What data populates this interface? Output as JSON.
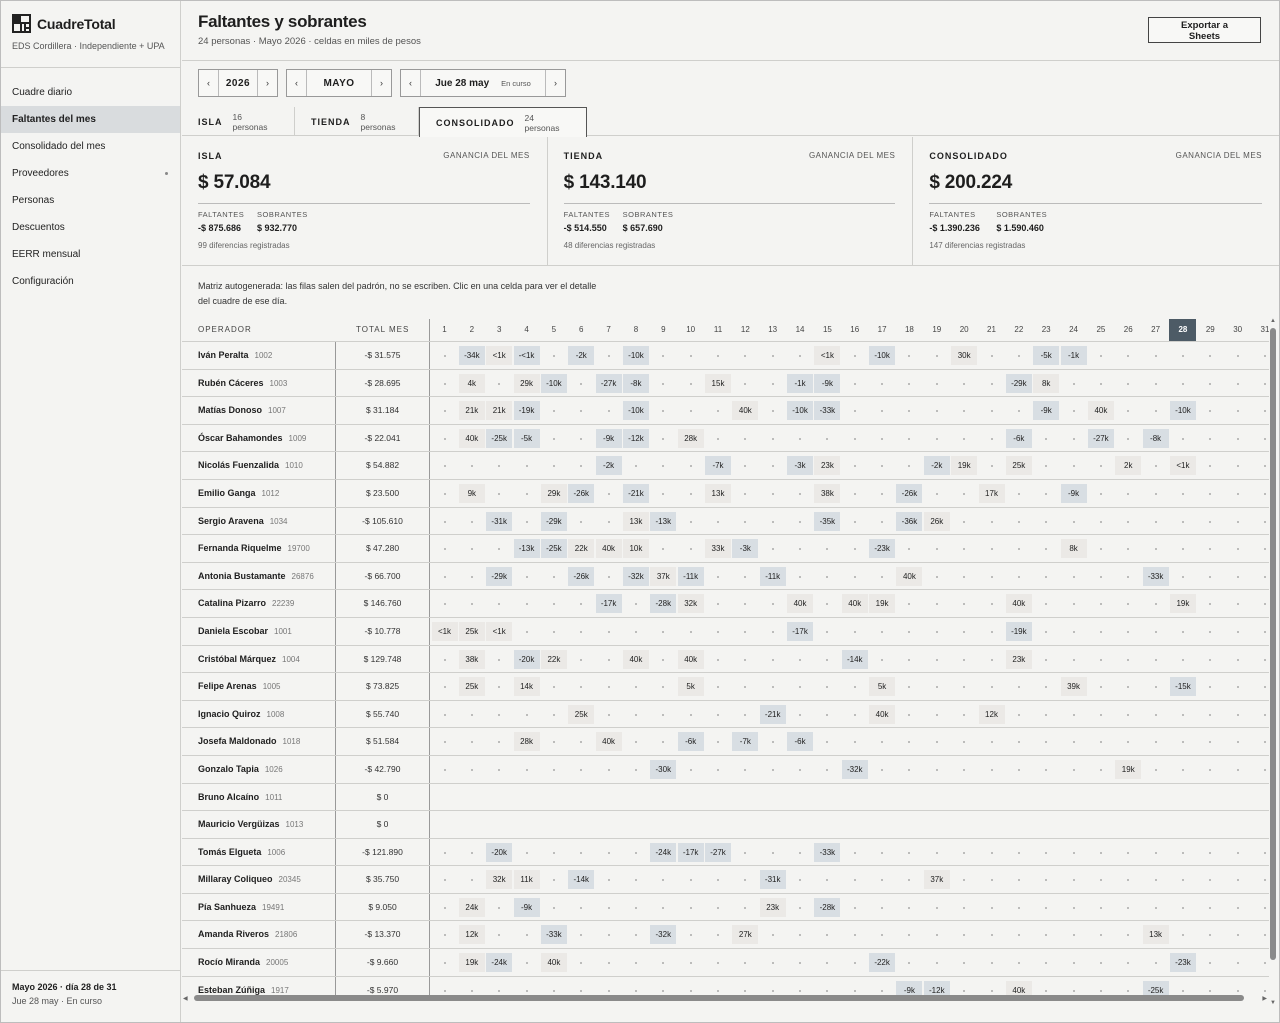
{
  "brand": {
    "name": "CuadreTotal",
    "subtitle": "EDS Cordillera · Independiente + UPA"
  },
  "nav": [
    {
      "label": "Cuadre diario",
      "name": "nav-cuadre-diario",
      "active": false
    },
    {
      "label": "Faltantes del mes",
      "name": "nav-faltantes-del-mes",
      "active": true
    },
    {
      "label": "Consolidado del mes",
      "name": "nav-consolidado-del-mes",
      "active": false
    },
    {
      "label": "Proveedores",
      "name": "nav-proveedores",
      "active": false,
      "dot": true
    },
    {
      "label": "Personas",
      "name": "nav-personas",
      "active": false
    },
    {
      "label": "Descuentos",
      "name": "nav-descuentos",
      "active": false
    },
    {
      "label": "EERR mensual",
      "name": "nav-eerr-mensual",
      "active": false
    },
    {
      "label": "Configuración",
      "name": "nav-configuracion",
      "active": false
    }
  ],
  "sidebar_footer": {
    "line1": "Mayo 2026 · día 28 de 31",
    "line2": "Jue 28 may · En curso"
  },
  "header": {
    "title": "Faltantes y sobrantes",
    "subtitle": "24 personas · Mayo 2026 · celdas en miles de pesos",
    "export_line1": "Exportar a",
    "export_line2": "Sheets"
  },
  "pickers": {
    "year": "2026",
    "month": "MAYO",
    "day": "Jue 28 may",
    "day_badge": "En curso",
    "prev": "‹",
    "next": "›"
  },
  "tabs": [
    {
      "label": "ISLA",
      "count": "16 personas",
      "active": false
    },
    {
      "label": "TIENDA",
      "count": "8 personas",
      "active": false
    },
    {
      "label": "CONSOLIDADO",
      "count": "24 personas",
      "active": true
    }
  ],
  "cards": [
    {
      "name": "ISLA",
      "gan_label": "GANANCIA DEL MES",
      "value": "$ 57.084",
      "faltantes_label": "FALTANTES",
      "faltantes": "-$ 875.686",
      "sobrantes_label": "SOBRANTES",
      "sobrantes": "$ 932.770",
      "diff": "99 diferencias registradas"
    },
    {
      "name": "TIENDA",
      "gan_label": "GANANCIA DEL MES",
      "value": "$ 143.140",
      "faltantes_label": "FALTANTES",
      "faltantes": "-$ 514.550",
      "sobrantes_label": "SOBRANTES",
      "sobrantes": "$ 657.690",
      "diff": "48 diferencias registradas"
    },
    {
      "name": "CONSOLIDADO",
      "gan_label": "GANANCIA DEL MES",
      "value": "$ 200.224",
      "faltantes_label": "FALTANTES",
      "faltantes": "-$ 1.390.236",
      "sobrantes_label": "SOBRANTES",
      "sobrantes": "$ 1.590.460",
      "diff": "147 diferencias registradas"
    }
  ],
  "note": "Matriz autogenerada: las filas salen del padrón, no se escriben. Clic en una celda para ver el detalle del cuadre de ese día.",
  "matrix": {
    "col_operator": "OPERADOR",
    "col_total": "TOTAL MES",
    "days": [
      "1",
      "2",
      "3",
      "4",
      "5",
      "6",
      "7",
      "8",
      "9",
      "10",
      "11",
      "12",
      "13",
      "14",
      "15",
      "16",
      "17",
      "18",
      "19",
      "20",
      "21",
      "22",
      "23",
      "24",
      "25",
      "26",
      "27",
      "28",
      "29",
      "30",
      "31"
    ],
    "today": 28,
    "rows": [
      {
        "name": "Iván Peralta",
        "id": "1002",
        "total": "-$ 31.575",
        "cells": {
          "2": "-34k",
          "3": "<1k",
          "4": "-<1k",
          "6": "-2k",
          "8": "-10k",
          "15": "<1k",
          "17": "-10k",
          "20": "30k",
          "23": "-5k",
          "24": "-1k"
        }
      },
      {
        "name": "Rubén Cáceres",
        "id": "1003",
        "total": "-$ 28.695",
        "cells": {
          "2": "4k",
          "4": "29k",
          "5": "-10k",
          "7": "-27k",
          "8": "-8k",
          "11": "15k",
          "14": "-1k",
          "15": "-9k",
          "22": "-29k",
          "23": "8k"
        }
      },
      {
        "name": "Matías Donoso",
        "id": "1007",
        "total": "$ 31.184",
        "cells": {
          "2": "21k",
          "3": "21k",
          "4": "-19k",
          "8": "-10k",
          "12": "40k",
          "14": "-10k",
          "15": "-33k",
          "23": "-9k",
          "25": "40k",
          "28": "-10k"
        }
      },
      {
        "name": "Óscar Bahamondes",
        "id": "1009",
        "total": "-$ 22.041",
        "cells": {
          "2": "40k",
          "3": "-25k",
          "4": "-5k",
          "7": "-9k",
          "8": "-12k",
          "10": "28k",
          "22": "-6k",
          "25": "-27k",
          "27": "-8k"
        }
      },
      {
        "name": "Nicolás Fuenzalida",
        "id": "1010",
        "total": "$ 54.882",
        "cells": {
          "7": "-2k",
          "11": "-7k",
          "14": "-3k",
          "15": "23k",
          "19": "-2k",
          "20": "19k",
          "22": "25k",
          "26": "2k",
          "28": "<1k"
        }
      },
      {
        "name": "Emilio Ganga",
        "id": "1012",
        "total": "$ 23.500",
        "cells": {
          "2": "9k",
          "5": "29k",
          "6": "-26k",
          "8": "-21k",
          "11": "13k",
          "15": "38k",
          "18": "-26k",
          "21": "17k",
          "24": "-9k"
        }
      },
      {
        "name": "Sergio Aravena",
        "id": "1034",
        "total": "-$ 105.610",
        "cells": {
          "3": "-31k",
          "5": "-29k",
          "8": "13k",
          "9": "-13k",
          "15": "-35k",
          "18": "-36k",
          "19": "26k"
        }
      },
      {
        "name": "Fernanda Riquelme",
        "id": "19700",
        "total": "$ 47.280",
        "cells": {
          "4": "-13k",
          "5": "-25k",
          "6": "22k",
          "7": "40k",
          "8": "10k",
          "11": "33k",
          "12": "-3k",
          "17": "-23k",
          "24": "8k"
        }
      },
      {
        "name": "Antonia Bustamante",
        "id": "26876",
        "total": "-$ 66.700",
        "cells": {
          "3": "-29k",
          "6": "-26k",
          "8": "-32k",
          "9": "37k",
          "10": "-11k",
          "13": "-11k",
          "18": "40k",
          "27": "-33k"
        }
      },
      {
        "name": "Catalina Pizarro",
        "id": "22239",
        "total": "$ 146.760",
        "cells": {
          "7": "-17k",
          "9": "-28k",
          "10": "32k",
          "14": "40k",
          "16": "40k",
          "17": "19k",
          "22": "40k",
          "28": "19k"
        }
      },
      {
        "name": "Daniela Escobar",
        "id": "1001",
        "total": "-$ 10.778",
        "cells": {
          "1": "<1k",
          "2": "25k",
          "3": "<1k",
          "14": "-17k",
          "22": "-19k"
        }
      },
      {
        "name": "Cristóbal Márquez",
        "id": "1004",
        "total": "$ 129.748",
        "cells": {
          "2": "38k",
          "4": "-20k",
          "5": "22k",
          "8": "40k",
          "10": "40k",
          "16": "-14k",
          "22": "23k"
        }
      },
      {
        "name": "Felipe Arenas",
        "id": "1005",
        "total": "$ 73.825",
        "cells": {
          "2": "25k",
          "4": "14k",
          "10": "5k",
          "17": "5k",
          "24": "39k",
          "28": "-15k"
        }
      },
      {
        "name": "Ignacio Quiroz",
        "id": "1008",
        "total": "$ 55.740",
        "cells": {
          "6": "25k",
          "13": "-21k",
          "17": "40k",
          "21": "12k"
        }
      },
      {
        "name": "Josefa Maldonado",
        "id": "1018",
        "total": "$ 51.584",
        "cells": {
          "4": "28k",
          "7": "40k",
          "10": "-6k",
          "12": "-7k",
          "14": "-6k"
        }
      },
      {
        "name": "Gonzalo Tapia",
        "id": "1026",
        "total": "-$ 42.790",
        "cells": {
          "9": "-30k",
          "16": "-32k",
          "26": "19k"
        }
      },
      {
        "name": "Bruno Alcaíno",
        "id": "1011",
        "total": "$ 0",
        "cells": {},
        "empty": true
      },
      {
        "name": "Mauricio Vergüizas",
        "id": "1013",
        "total": "$ 0",
        "cells": {},
        "empty": true
      },
      {
        "name": "Tomás Elgueta",
        "id": "1006",
        "total": "-$ 121.890",
        "cells": {
          "3": "-20k",
          "9": "-24k",
          "10": "-17k",
          "11": "-27k",
          "15": "-33k"
        }
      },
      {
        "name": "Millaray Coliqueo",
        "id": "20345",
        "total": "$ 35.750",
        "cells": {
          "3": "32k",
          "4": "11k",
          "6": "-14k",
          "13": "-31k",
          "19": "37k"
        }
      },
      {
        "name": "Pía Sanhueza",
        "id": "19491",
        "total": "$ 9.050",
        "cells": {
          "2": "24k",
          "4": "-9k",
          "13": "23k",
          "15": "-28k"
        }
      },
      {
        "name": "Amanda Riveros",
        "id": "21806",
        "total": "-$ 13.370",
        "cells": {
          "2": "12k",
          "5": "-33k",
          "9": "-32k",
          "12": "27k",
          "27": "13k"
        }
      },
      {
        "name": "Rocío Miranda",
        "id": "20005",
        "total": "-$ 9.660",
        "cells": {
          "2": "19k",
          "3": "-24k",
          "5": "40k",
          "17": "-22k",
          "28": "-23k"
        }
      },
      {
        "name": "Esteban Zúñiga",
        "id": "1917",
        "total": "-$ 5.970",
        "cells": {
          "18": "-9k",
          "19": "-12k",
          "22": "40k",
          "27": "-25k"
        }
      }
    ]
  },
  "colors": {
    "negative_cell": "#d8dee3",
    "positive_cell": "#ebe9e6",
    "today_header": "#4d5b66"
  },
  "icons": {
    "logo": "grid-logo-icon",
    "arrows": "chevron-icons"
  }
}
